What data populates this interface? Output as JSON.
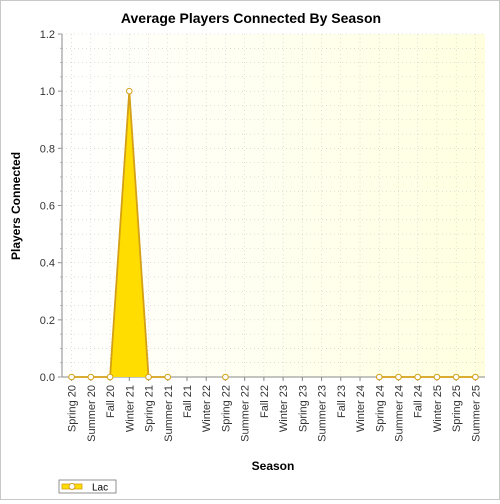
{
  "chart_data": {
    "type": "area",
    "title": "Average Players Connected By Season",
    "xlabel": "Season",
    "ylabel": "Players Connected",
    "ylim": [
      0,
      1.2
    ],
    "yticks": [
      "0.0",
      "0.2",
      "0.4",
      "0.6",
      "0.8",
      "1.0",
      "1.2"
    ],
    "categories": [
      "Spring 20",
      "Summer 20",
      "Fall 20",
      "Winter 21",
      "Spring 21",
      "Summer 21",
      "Fall 21",
      "Winter 22",
      "Spring 22",
      "Summer 22",
      "Fall 22",
      "Winter 23",
      "Spring 23",
      "Summer 23",
      "Fall 23",
      "Winter 24",
      "Spring 24",
      "Summer 24",
      "Fall 24",
      "Winter 25",
      "Spring 25",
      "Summer 25"
    ],
    "series": [
      {
        "name": "Lac",
        "x": [
          "Spring 20",
          "Summer 20",
          "Fall 20",
          "Winter 21",
          "Spring 21",
          "Summer 21",
          "Spring 22",
          "Spring 24",
          "Summer 24",
          "Fall 24",
          "Winter 25",
          "Spring 25",
          "Summer 25"
        ],
        "values": [
          0,
          0,
          0,
          1.0,
          0,
          0,
          0,
          0,
          0,
          0,
          0,
          0,
          0
        ],
        "segments": [
          [
            0,
            5
          ],
          [
            6,
            6
          ],
          [
            7,
            12
          ]
        ]
      }
    ],
    "grid": true,
    "legend_position": "bottom-left",
    "colors": {
      "fill": "#ffdd00",
      "line": "#d4a017",
      "marker_fill": "#ffffff",
      "plot_bg": "#ffffe6",
      "grid": "#c9c9c9"
    }
  }
}
